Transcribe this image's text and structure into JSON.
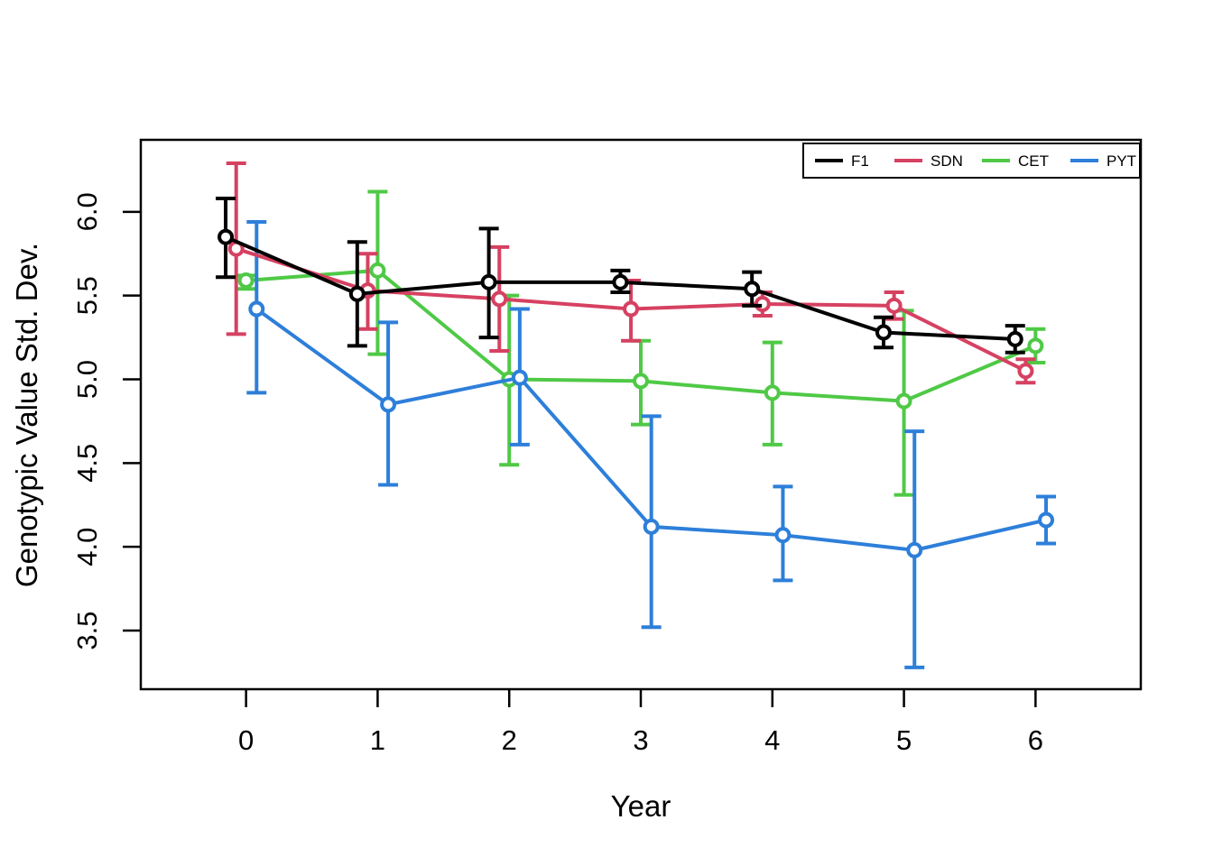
{
  "figure": {
    "background": "#ffffff",
    "border_color": "#000000"
  },
  "chart_data": {
    "type": "line",
    "title": "",
    "xlabel": "Year",
    "ylabel": "Genotypic Value Std. Dev.",
    "x": [
      0,
      1,
      2,
      3,
      4,
      5,
      6
    ],
    "x_tick_labels": [
      "0",
      "1",
      "2",
      "3",
      "4",
      "5",
      "6"
    ],
    "y_tick_values": [
      3.5,
      4.0,
      4.5,
      5.0,
      5.5,
      6.0
    ],
    "y_tick_labels": [
      "3.5",
      "4.0",
      "4.5",
      "5.0",
      "5.5",
      "6.0"
    ],
    "xlim": [
      -0.8,
      6.8
    ],
    "ylim": [
      3.15,
      6.43
    ],
    "grid": false,
    "error_bars": true,
    "marker": "open-circle",
    "legend_position": "top-right-inside",
    "legend_order": [
      "F1",
      "SDN",
      "CET",
      "PYT"
    ],
    "draw_order": [
      "CET",
      "PYT",
      "SDN",
      "F1"
    ],
    "series": [
      {
        "name": "F1",
        "color": "#000000",
        "x_offset": -0.155,
        "values": [
          5.85,
          5.51,
          5.58,
          5.58,
          5.54,
          5.28,
          5.24
        ],
        "lower": [
          5.61,
          5.2,
          5.25,
          5.52,
          5.44,
          5.19,
          5.16
        ],
        "upper": [
          6.08,
          5.82,
          5.9,
          5.65,
          5.64,
          5.37,
          5.32
        ]
      },
      {
        "name": "SDN",
        "color": "#d64161",
        "x_offset": -0.075,
        "values": [
          5.78,
          5.53,
          5.48,
          5.42,
          5.45,
          5.44,
          5.05
        ],
        "lower": [
          5.27,
          5.3,
          5.17,
          5.23,
          5.38,
          5.36,
          4.98
        ],
        "upper": [
          6.29,
          5.75,
          5.79,
          5.59,
          5.52,
          5.52,
          5.12
        ]
      },
      {
        "name": "CET",
        "color": "#4fc946",
        "x_offset": 0.0,
        "values": [
          5.59,
          5.65,
          5.0,
          4.99,
          4.92,
          4.87,
          5.2
        ],
        "lower": [
          5.54,
          5.15,
          4.49,
          4.73,
          4.61,
          4.31,
          5.1
        ],
        "upper": [
          5.62,
          6.12,
          5.5,
          5.23,
          5.22,
          5.41,
          5.3
        ]
      },
      {
        "name": "PYT",
        "color": "#2d7fd9",
        "x_offset": 0.08,
        "values": [
          5.42,
          4.85,
          5.01,
          4.12,
          4.07,
          3.98,
          4.16
        ],
        "lower": [
          4.92,
          4.37,
          4.61,
          3.52,
          3.8,
          3.28,
          4.02
        ],
        "upper": [
          5.94,
          5.34,
          5.42,
          4.78,
          4.36,
          4.69,
          4.3
        ]
      }
    ]
  }
}
